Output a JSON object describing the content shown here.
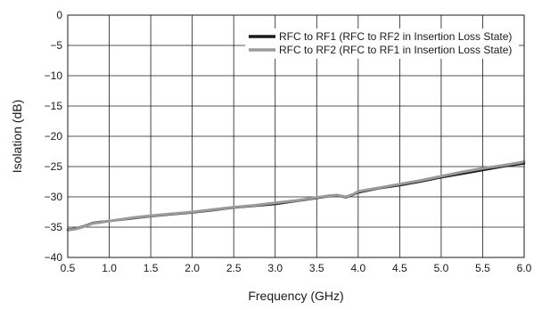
{
  "chart_data": {
    "type": "line",
    "title": "",
    "xlabel": "Frequency (GHz)",
    "ylabel": "Isolation (dB)",
    "xlim": [
      0.5,
      6.0
    ],
    "ylim": [
      -40,
      0
    ],
    "xticks": [
      0.5,
      1.0,
      1.5,
      2.0,
      2.5,
      3.0,
      3.5,
      4.0,
      4.5,
      5.0,
      5.5,
      6.0
    ],
    "xtick_labels": [
      "0.5",
      "1.0",
      "1.5",
      "2.0",
      "2.5",
      "3.0",
      "3.5",
      "4.0",
      "4.5",
      "5.0",
      "5.5",
      "6.0"
    ],
    "yticks": [
      0,
      -5,
      -10,
      -15,
      -20,
      -25,
      -30,
      -35,
      -40
    ],
    "ytick_labels": [
      "0",
      "−5",
      "−10",
      "−15",
      "−20",
      "−25",
      "−30",
      "−35",
      "−40"
    ],
    "grid": true,
    "legend_position": "top-right",
    "series": [
      {
        "name": "RFC to RF1 (RFC to RF2 in Insertion Loss State)",
        "color": "#1a1a1a",
        "x": [
          0.5,
          0.6,
          0.7,
          0.8,
          0.9,
          1.0,
          1.25,
          1.5,
          1.75,
          2.0,
          2.25,
          2.5,
          2.75,
          3.0,
          3.25,
          3.5,
          3.65,
          3.75,
          3.85,
          3.95,
          4.0,
          4.25,
          4.5,
          4.75,
          5.0,
          5.25,
          5.5,
          5.75,
          6.0
        ],
        "y": [
          -35.4,
          -35.2,
          -34.8,
          -34.3,
          -34.1,
          -34.0,
          -33.6,
          -33.2,
          -32.9,
          -32.6,
          -32.2,
          -31.8,
          -31.5,
          -31.2,
          -30.7,
          -30.2,
          -29.9,
          -29.8,
          -30.1,
          -29.6,
          -29.3,
          -28.6,
          -28.1,
          -27.5,
          -26.8,
          -26.2,
          -25.6,
          -25.0,
          -24.5
        ]
      },
      {
        "name": "RFC to RF2 (RFC to RF1 in Insertion Loss State)",
        "color": "#9a9a9a",
        "x": [
          0.5,
          0.6,
          0.7,
          0.8,
          0.9,
          1.0,
          1.25,
          1.5,
          1.75,
          2.0,
          2.25,
          2.5,
          2.75,
          3.0,
          3.25,
          3.5,
          3.65,
          3.75,
          3.85,
          3.95,
          4.0,
          4.25,
          4.5,
          4.75,
          5.0,
          5.25,
          5.5,
          5.75,
          6.0
        ],
        "y": [
          -35.5,
          -35.3,
          -34.9,
          -34.4,
          -34.2,
          -34.0,
          -33.5,
          -33.1,
          -32.8,
          -32.5,
          -32.1,
          -31.7,
          -31.4,
          -31.0,
          -30.6,
          -30.1,
          -29.8,
          -29.7,
          -30.0,
          -29.5,
          -29.1,
          -28.5,
          -27.9,
          -27.3,
          -26.6,
          -25.9,
          -25.3,
          -24.8,
          -24.2
        ]
      }
    ]
  }
}
